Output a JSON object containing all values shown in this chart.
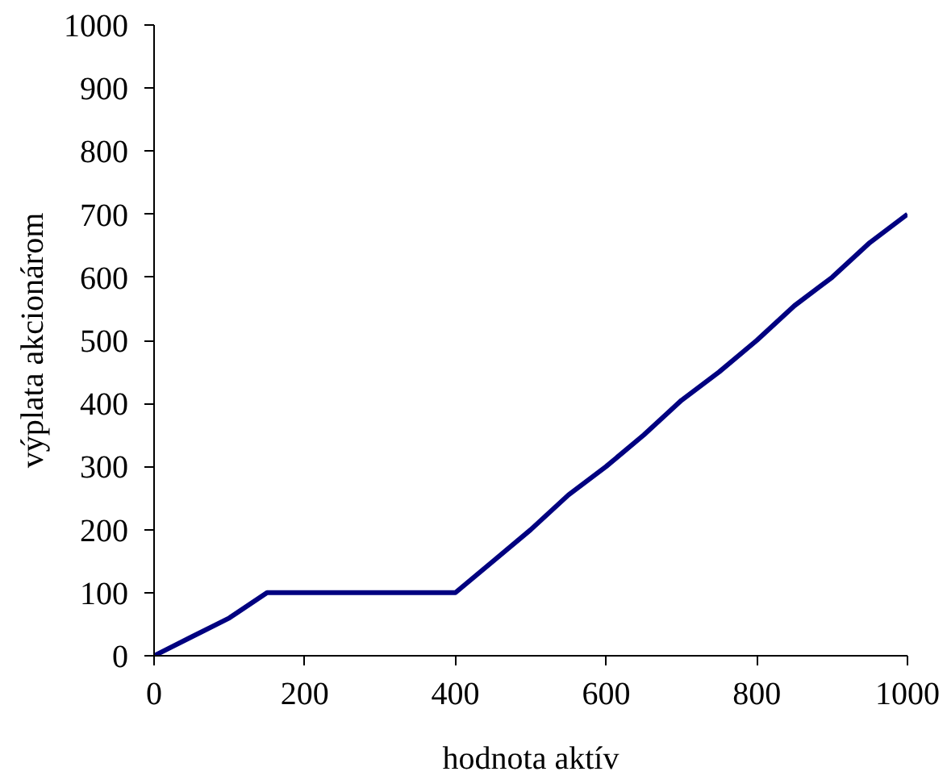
{
  "chart_data": {
    "type": "line",
    "xlabel": "hodnota aktív",
    "ylabel": "výplata akcionárom",
    "x": [
      0,
      50,
      100,
      150,
      200,
      250,
      300,
      350,
      400,
      450,
      500,
      550,
      600,
      650,
      700,
      750,
      800,
      850,
      900,
      950,
      1000
    ],
    "series": [
      {
        "color": "#000080",
        "values": [
          0,
          30,
          60,
          100,
          100,
          100,
          100,
          100,
          100,
          150,
          200,
          255,
          300,
          350,
          405,
          450,
          500,
          555,
          600,
          655,
          700
        ]
      }
    ],
    "xlim": [
      0,
      1000
    ],
    "ylim": [
      0,
      1000
    ],
    "xticks": [
      0,
      200,
      400,
      600,
      800,
      1000
    ],
    "yticks": [
      0,
      100,
      200,
      300,
      400,
      500,
      600,
      700,
      800,
      900,
      1000
    ],
    "grid": false,
    "marker": "none",
    "line_style": "solid"
  }
}
